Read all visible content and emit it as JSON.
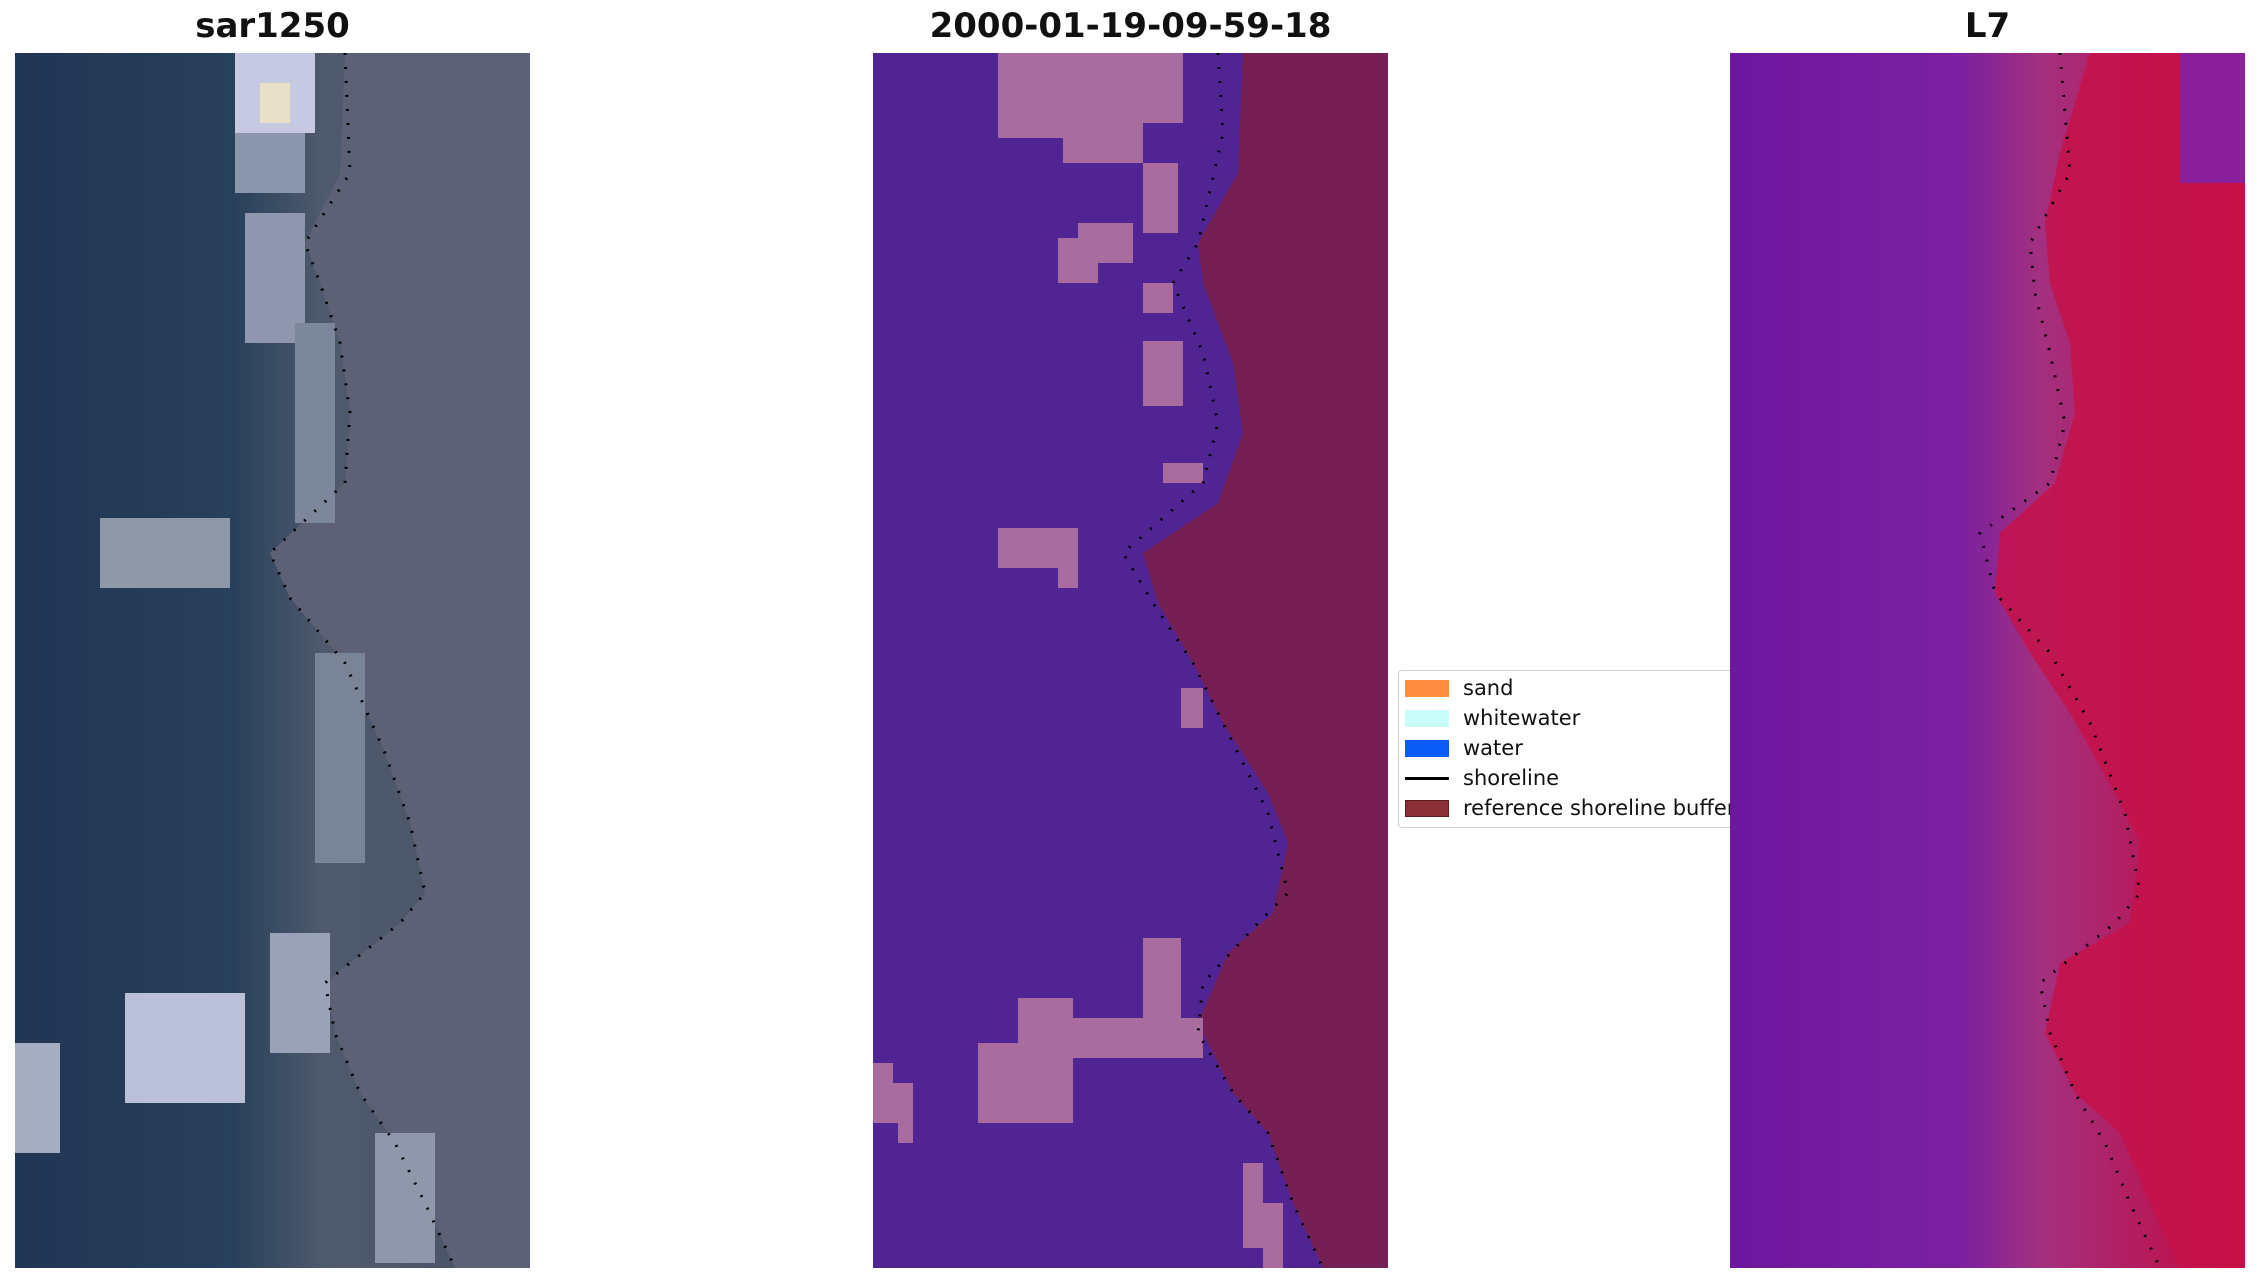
{
  "panels": [
    {
      "title": "sar1250"
    },
    {
      "title": "2000-01-19-09-59-18"
    },
    {
      "title": "L7"
    }
  ],
  "legend": {
    "items": [
      {
        "label": "sand",
        "color": "#ff8c3f",
        "kind": "patch"
      },
      {
        "label": "whitewater",
        "color": "#c9fdfa",
        "kind": "patch"
      },
      {
        "label": "water",
        "color": "#0a5af5",
        "kind": "patch"
      },
      {
        "label": "shoreline",
        "color": "#000000",
        "kind": "line"
      },
      {
        "label": "reference shoreline buffer",
        "color": "#8b2f34",
        "kind": "patch"
      }
    ]
  },
  "colors": {
    "classified_water": "#512494",
    "classified_light": "#a86c9e",
    "classified_buffer": "#751f55",
    "rgb_water": "#213554",
    "rgb_land": "#5b6074",
    "index_low": "#7418a2",
    "index_high": "#c9093c"
  }
}
